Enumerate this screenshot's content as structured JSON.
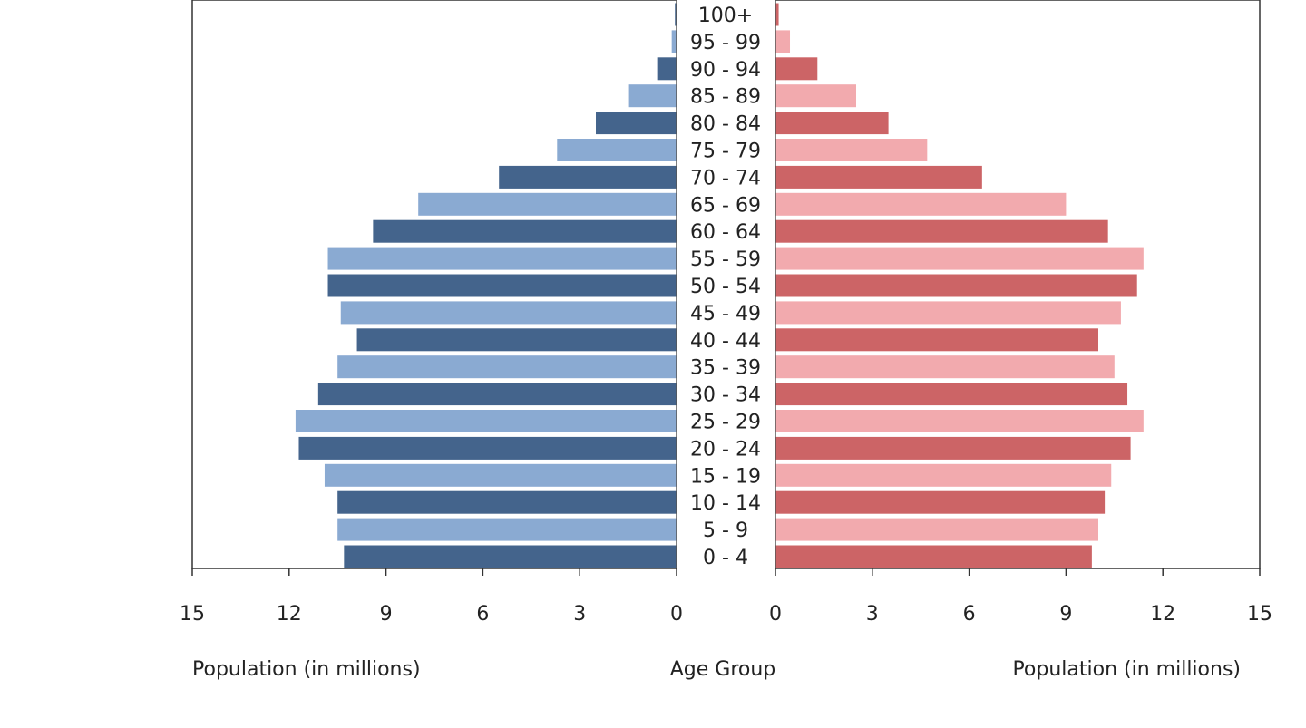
{
  "chart_data": {
    "type": "bar",
    "orientation": "horizontal",
    "layout": "population-pyramid",
    "categories": [
      "0 - 4",
      "5 - 9",
      "10 - 14",
      "15 - 19",
      "20 - 24",
      "25 - 29",
      "30 - 34",
      "35 - 39",
      "40 - 44",
      "45 - 49",
      "50 - 54",
      "55 - 59",
      "60 - 64",
      "65 - 69",
      "70 - 74",
      "75 - 79",
      "80 - 84",
      "85 - 89",
      "90 - 94",
      "95 - 99",
      "100+"
    ],
    "series": [
      {
        "side": "left",
        "colors": [
          "#44648c",
          "#8aaad2"
        ],
        "values": [
          10.3,
          10.5,
          10.5,
          10.9,
          11.7,
          11.8,
          11.1,
          10.5,
          9.9,
          10.4,
          10.8,
          10.8,
          9.4,
          8.0,
          5.5,
          3.7,
          2.5,
          1.5,
          0.6,
          0.15,
          0.05
        ]
      },
      {
        "side": "right",
        "colors": [
          "#cc6466",
          "#f2aaae"
        ],
        "values": [
          9.8,
          10.0,
          10.2,
          10.4,
          11.0,
          11.4,
          10.9,
          10.5,
          10.0,
          10.7,
          11.2,
          11.4,
          10.3,
          9.0,
          6.4,
          4.7,
          3.5,
          2.5,
          1.3,
          0.45,
          0.1
        ]
      }
    ],
    "xlim": [
      0,
      15
    ],
    "ticks": [
      "15",
      "12",
      "9",
      "6",
      "3",
      "0"
    ],
    "right_ticks": [
      "0",
      "3",
      "6",
      "9",
      "12",
      "15"
    ],
    "xlabel_left": "Population (in millions)",
    "xlabel_center": "Age Group",
    "xlabel_right": "Population (in millions)",
    "grid": false
  }
}
